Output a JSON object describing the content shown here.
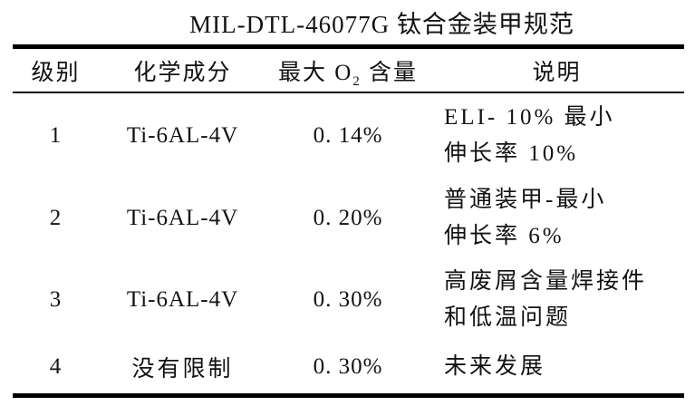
{
  "title": "MIL-DTL-46077G 钛合金装甲规范",
  "table": {
    "header": {
      "grade": "级别",
      "composition": "化学成分",
      "o2_pre": "最大 O",
      "o2_sub": "2",
      "o2_post": " 含量",
      "description": "说明"
    },
    "rows": [
      {
        "grade": "1",
        "composition": "Ti-6AL-4V",
        "max_o2": "0. 14%",
        "description": "ELI- 10% 最小\n伸长率 10%"
      },
      {
        "grade": "2",
        "composition": "Ti-6AL-4V",
        "max_o2": "0. 20%",
        "description": "普通装甲-最小\n伸长率 6%"
      },
      {
        "grade": "3",
        "composition": "Ti-6AL-4V",
        "max_o2": "0. 30%",
        "description": "高废屑含量焊接件\n和低温问题"
      },
      {
        "grade": "4",
        "composition": "没有限制",
        "max_o2": "0. 30%",
        "description": "未来发展"
      }
    ]
  },
  "colors": {
    "text": "#121212",
    "rule": "#000000",
    "background": "#ffffff"
  }
}
